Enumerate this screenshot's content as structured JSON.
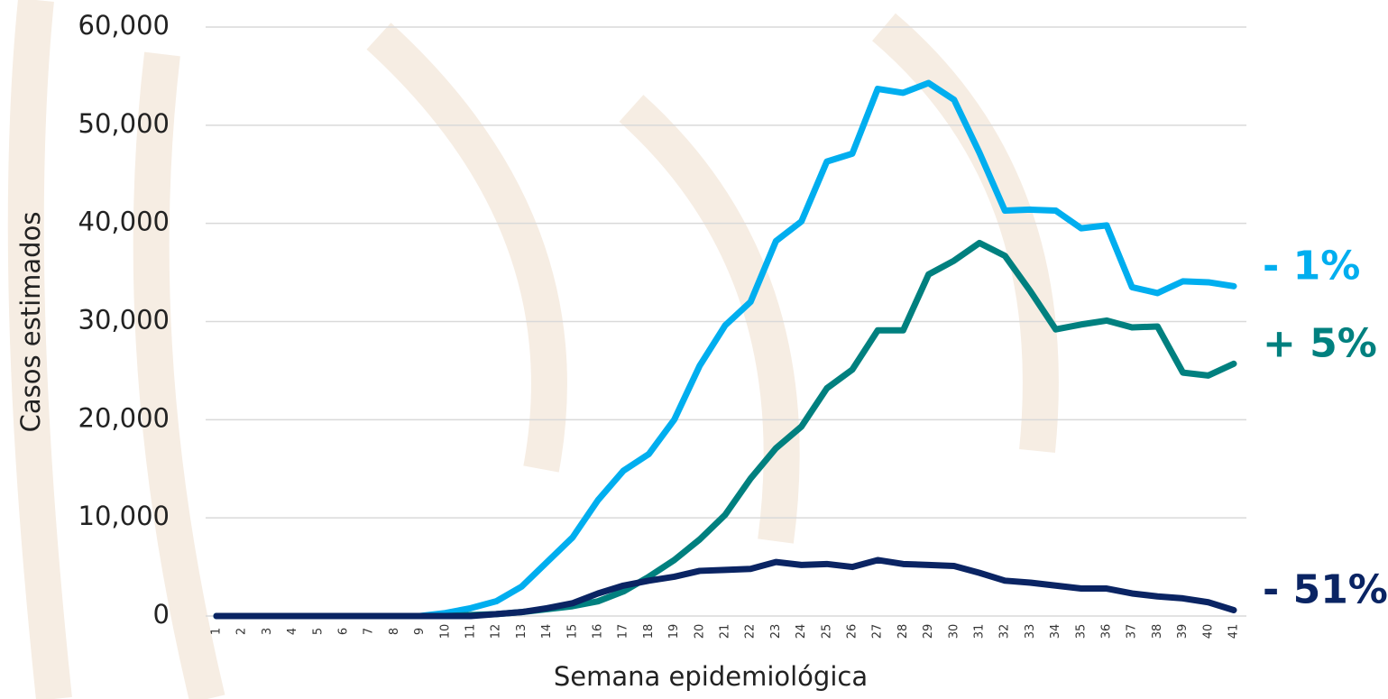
{
  "chart_data": {
    "type": "line",
    "x_label": "Semana epidemiológica",
    "y_label": "Casos estimados",
    "categories": [
      "1",
      "2",
      "3",
      "4",
      "5",
      "6",
      "7",
      "8",
      "9",
      "10",
      "11",
      "12",
      "13",
      "14",
      "15",
      "16",
      "17",
      "18",
      "19",
      "20",
      "21",
      "22",
      "23",
      "24",
      "25",
      "26",
      "27",
      "28",
      "29",
      "30",
      "31",
      "32",
      "33",
      "34",
      "35",
      "36",
      "37",
      "38",
      "39",
      "40",
      "41"
    ],
    "ylim": [
      0,
      60000
    ],
    "yticks": [
      0,
      {
        "value": 10000,
        "label": "10,000"
      },
      {
        "value": 20000,
        "label": "20,000"
      },
      {
        "value": 30000,
        "label": "30,000"
      },
      {
        "value": 40000,
        "label": "40,000"
      },
      {
        "value": 50000,
        "label": "50,000"
      },
      {
        "value": 60000,
        "label": "60,000"
      }
    ],
    "grid": true,
    "series": [
      {
        "color": "#00aeef",
        "annotation": "- 1%",
        "values": [
          0,
          0,
          0,
          0,
          0,
          0,
          0,
          0,
          0,
          300,
          800,
          1500,
          3000,
          5500,
          8000,
          11800,
          14800,
          16500,
          20000,
          25500,
          29600,
          32000,
          38200,
          40200,
          46300,
          47100,
          53700,
          53300,
          54300,
          52600,
          47200,
          41300,
          41400,
          41300,
          39500,
          39800,
          33500,
          32900,
          34100,
          34000,
          33600
        ]
      },
      {
        "color": "#00807f",
        "annotation": "+ 5%",
        "values": [
          0,
          0,
          0,
          0,
          0,
          0,
          0,
          0,
          0,
          0,
          100,
          200,
          400,
          700,
          1000,
          1500,
          2500,
          4000,
          5700,
          7800,
          10300,
          14000,
          17100,
          19300,
          23200,
          25100,
          29100,
          29100,
          34800,
          36200,
          38000,
          36700,
          33100,
          29200,
          29700,
          30100,
          29400,
          29500,
          24800,
          24500,
          25700
        ]
      },
      {
        "color": "#0a2463",
        "annotation": "- 51%",
        "values": [
          0,
          0,
          0,
          0,
          0,
          0,
          0,
          0,
          0,
          0,
          0,
          200,
          400,
          800,
          1300,
          2300,
          3100,
          3600,
          4000,
          4600,
          4700,
          4800,
          5500,
          5200,
          5300,
          5000,
          5700,
          5300,
          5200,
          5100,
          4400,
          3600,
          3400,
          3100,
          2800,
          2800,
          2300,
          2000,
          1800,
          1400,
          600
        ]
      }
    ]
  }
}
